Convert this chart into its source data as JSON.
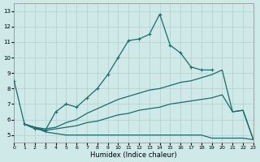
{
  "xlabel": "Humidex (Indice chaleur)",
  "xlim": [
    0,
    23
  ],
  "ylim": [
    4.5,
    13.5
  ],
  "xticks": [
    0,
    1,
    2,
    3,
    4,
    5,
    6,
    7,
    8,
    9,
    10,
    11,
    12,
    13,
    14,
    15,
    16,
    17,
    18,
    19,
    20,
    21,
    22,
    23
  ],
  "yticks": [
    5,
    6,
    7,
    8,
    9,
    10,
    11,
    12,
    13
  ],
  "bg_color": "#cfe8e8",
  "grid_color": "#b0d0d0",
  "line_color": "#1a6b6b",
  "marked_x": [
    0,
    1,
    2,
    3,
    4,
    5,
    6,
    7,
    8,
    9,
    10,
    11,
    12,
    13,
    14,
    15,
    16,
    17,
    18,
    19
  ],
  "marked_y": [
    8.5,
    5.7,
    5.4,
    5.3,
    6.5,
    7.0,
    6.8,
    7.4,
    8.0,
    8.9,
    10.0,
    11.1,
    11.2,
    11.5,
    12.8,
    10.8,
    10.3,
    9.4,
    9.2,
    9.2
  ],
  "lineA_x": [
    1,
    2,
    3,
    4,
    5,
    6,
    7,
    8,
    9,
    10,
    11,
    12,
    13,
    14,
    15,
    16,
    17,
    18,
    19,
    20,
    21,
    22,
    23
  ],
  "lineA_y": [
    5.7,
    5.5,
    5.4,
    5.5,
    5.8,
    6.0,
    6.4,
    6.7,
    7.0,
    7.3,
    7.5,
    7.7,
    7.9,
    8.0,
    8.2,
    8.4,
    8.5,
    8.7,
    8.9,
    9.2,
    6.5,
    6.6,
    4.7
  ],
  "lineB_x": [
    1,
    2,
    3,
    4,
    5,
    6,
    7,
    8,
    9,
    10,
    11,
    12,
    13,
    14,
    15,
    16,
    17,
    18,
    19,
    20,
    21,
    22,
    23
  ],
  "lineB_y": [
    5.7,
    5.5,
    5.3,
    5.4,
    5.5,
    5.6,
    5.8,
    5.9,
    6.1,
    6.3,
    6.4,
    6.6,
    6.7,
    6.8,
    7.0,
    7.1,
    7.2,
    7.3,
    7.4,
    7.6,
    6.5,
    6.6,
    4.7
  ],
  "lineC_x": [
    1,
    2,
    3,
    4,
    5,
    6,
    7,
    8,
    9,
    10,
    11,
    12,
    13,
    14,
    15,
    16,
    17,
    18,
    19,
    20,
    21,
    22,
    23
  ],
  "lineC_y": [
    5.7,
    5.5,
    5.2,
    5.1,
    5.0,
    5.0,
    5.0,
    5.0,
    5.0,
    5.0,
    5.0,
    5.0,
    5.0,
    5.0,
    5.0,
    5.0,
    5.0,
    5.0,
    4.8,
    4.8,
    4.8,
    4.8,
    4.7
  ]
}
